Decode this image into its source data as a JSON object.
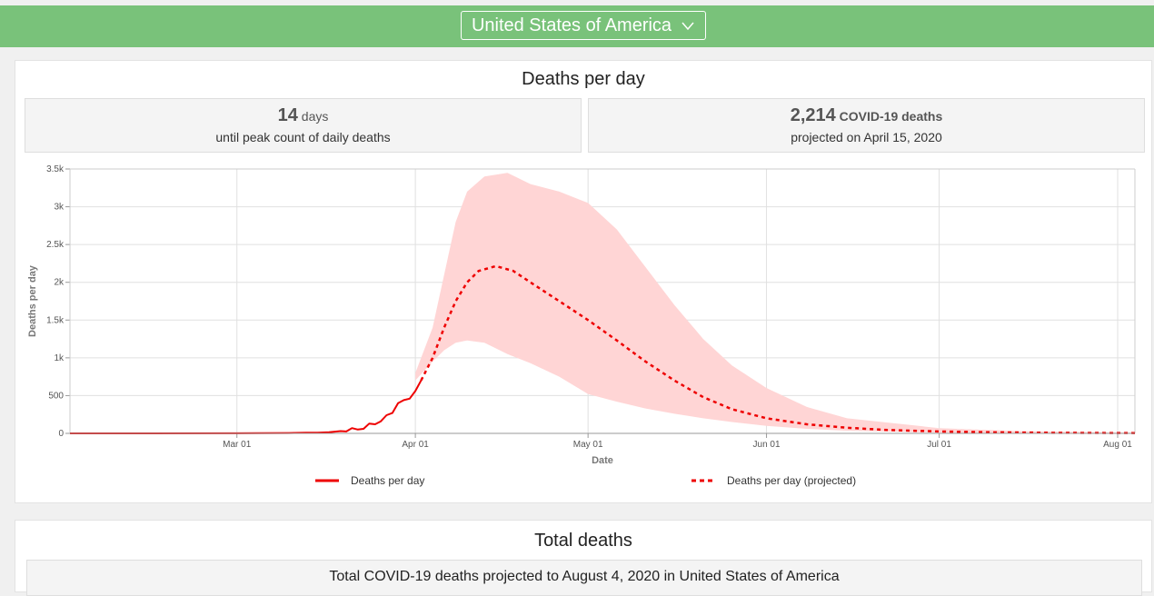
{
  "header": {
    "country": "United States of America",
    "background_color": "#79c27a"
  },
  "deaths_card": {
    "title": "Deaths per day",
    "stat_left": {
      "value": "14",
      "unit": "days",
      "caption": "until peak count of daily deaths"
    },
    "stat_right": {
      "value": "2,214",
      "unit": "COVID-19 deaths",
      "caption": "projected on April 15, 2020"
    }
  },
  "total_card": {
    "title": "Total deaths",
    "subtitle": "Total COVID-19 deaths projected to August 4, 2020 in United States of America"
  },
  "chart_data": {
    "type": "line",
    "xlabel": "Date",
    "ylabel": "Deaths per day",
    "ylim": [
      0,
      3500
    ],
    "x_ticks": [
      {
        "date": "2020-03-01",
        "label": "Mar 01"
      },
      {
        "date": "2020-04-01",
        "label": "Apr 01"
      },
      {
        "date": "2020-05-01",
        "label": "May 01"
      },
      {
        "date": "2020-06-01",
        "label": "Jun 01"
      },
      {
        "date": "2020-07-01",
        "label": "Jul 01"
      },
      {
        "date": "2020-08-01",
        "label": "Aug 01"
      }
    ],
    "y_ticks": [
      {
        "value": 0,
        "label": "0"
      },
      {
        "value": 500,
        "label": "500"
      },
      {
        "value": 1000,
        "label": "1k"
      },
      {
        "value": 1500,
        "label": "1.5k"
      },
      {
        "value": 2000,
        "label": "2k"
      },
      {
        "value": 2500,
        "label": "2.5k"
      },
      {
        "value": 3000,
        "label": "3k"
      },
      {
        "value": 3500,
        "label": "3.5k"
      }
    ],
    "grid": true,
    "legend_position": "bottom",
    "colors": {
      "line": "#ee0000",
      "band": "#ffd5d5",
      "grid": "#e0e0e0"
    },
    "series": [
      {
        "name": "Deaths per day",
        "style": "solid",
        "points": [
          [
            "2020-02-01",
            0
          ],
          [
            "2020-02-15",
            0
          ],
          [
            "2020-03-01",
            1
          ],
          [
            "2020-03-05",
            2
          ],
          [
            "2020-03-10",
            5
          ],
          [
            "2020-03-13",
            8
          ],
          [
            "2020-03-15",
            10
          ],
          [
            "2020-03-17",
            15
          ],
          [
            "2020-03-19",
            30
          ],
          [
            "2020-03-20",
            25
          ],
          [
            "2020-03-21",
            70
          ],
          [
            "2020-03-22",
            50
          ],
          [
            "2020-03-23",
            60
          ],
          [
            "2020-03-24",
            130
          ],
          [
            "2020-03-25",
            120
          ],
          [
            "2020-03-26",
            160
          ],
          [
            "2020-03-27",
            240
          ],
          [
            "2020-03-28",
            270
          ],
          [
            "2020-03-29",
            400
          ],
          [
            "2020-03-30",
            440
          ],
          [
            "2020-03-31",
            460
          ],
          [
            "2020-04-01",
            560
          ],
          [
            "2020-04-02",
            700
          ]
        ]
      },
      {
        "name": "Deaths per day (projected)",
        "style": "dashed",
        "points": [
          [
            "2020-04-02",
            700
          ],
          [
            "2020-04-04",
            1000
          ],
          [
            "2020-04-06",
            1400
          ],
          [
            "2020-04-08",
            1750
          ],
          [
            "2020-04-10",
            2000
          ],
          [
            "2020-04-12",
            2150
          ],
          [
            "2020-04-15",
            2214
          ],
          [
            "2020-04-18",
            2150
          ],
          [
            "2020-04-22",
            1950
          ],
          [
            "2020-04-26",
            1750
          ],
          [
            "2020-05-01",
            1500
          ],
          [
            "2020-05-06",
            1230
          ],
          [
            "2020-05-11",
            950
          ],
          [
            "2020-05-16",
            700
          ],
          [
            "2020-05-21",
            480
          ],
          [
            "2020-05-26",
            320
          ],
          [
            "2020-06-01",
            200
          ],
          [
            "2020-06-08",
            120
          ],
          [
            "2020-06-15",
            75
          ],
          [
            "2020-06-22",
            45
          ],
          [
            "2020-07-01",
            25
          ],
          [
            "2020-07-10",
            15
          ],
          [
            "2020-07-20",
            8
          ],
          [
            "2020-08-04",
            4
          ]
        ]
      }
    ],
    "uncertainty_band": {
      "points": [
        [
          "2020-04-01",
          700,
          800
        ],
        [
          "2020-04-04",
          950,
          1400
        ],
        [
          "2020-04-06",
          1100,
          2100
        ],
        [
          "2020-04-08",
          1200,
          2800
        ],
        [
          "2020-04-10",
          1230,
          3200
        ],
        [
          "2020-04-13",
          1200,
          3400
        ],
        [
          "2020-04-17",
          1050,
          3450
        ],
        [
          "2020-04-21",
          930,
          3300
        ],
        [
          "2020-04-26",
          750,
          3200
        ],
        [
          "2020-05-01",
          520,
          3050
        ],
        [
          "2020-05-06",
          420,
          2700
        ],
        [
          "2020-05-11",
          330,
          2200
        ],
        [
          "2020-05-16",
          260,
          1700
        ],
        [
          "2020-05-21",
          200,
          1250
        ],
        [
          "2020-05-26",
          150,
          900
        ],
        [
          "2020-06-01",
          100,
          600
        ],
        [
          "2020-06-08",
          60,
          350
        ],
        [
          "2020-06-15",
          35,
          200
        ],
        [
          "2020-07-01",
          10,
          70
        ],
        [
          "2020-07-15",
          5,
          30
        ],
        [
          "2020-08-04",
          2,
          10
        ]
      ]
    }
  }
}
